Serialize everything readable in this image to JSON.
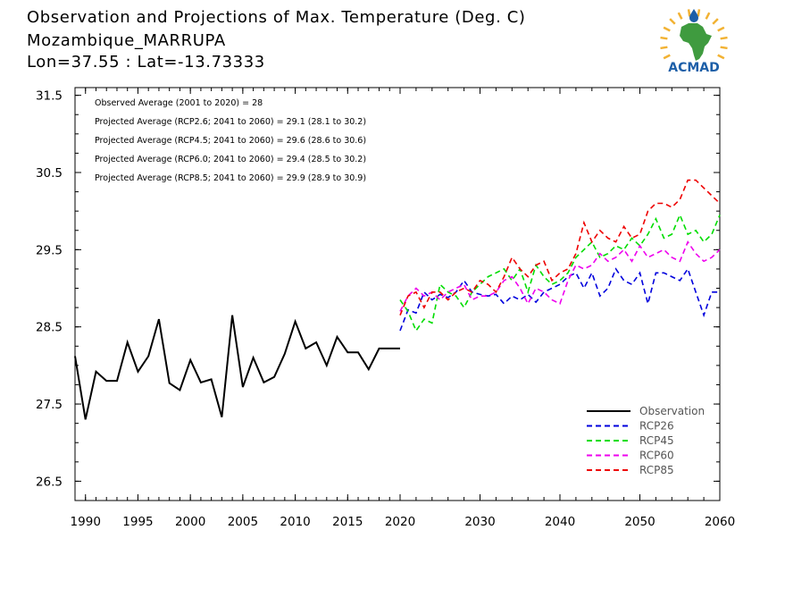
{
  "header": {
    "title": "Observation and Projections of Max. Temperature (Deg. C)",
    "location": "Mozambique_MARRUPA",
    "coords": "Lon=37.55 : Lat=-13.73333"
  },
  "logo": {
    "text": "ACMAD",
    "icon": "africa-sun-drop-logo",
    "brand_color": "#1d5fa8",
    "sun_color": "#f2b233",
    "africa_color": "#3f9b3f"
  },
  "annotations": [
    "Observed Average (2001 to 2020) = 28",
    "Projected Average (RCP2.6; 2041 to 2060) = 29.1 (28.1 to 30.2)",
    "Projected Average (RCP4.5; 2041 to 2060) = 29.6 (28.6 to 30.6)",
    "Projected Average (RCP6.0; 2041 to 2060) = 29.4 (28.5 to 30.2)",
    "Projected Average (RCP8.5; 2041 to 2060) = 29.9 (28.9 to 30.9)"
  ],
  "chart_data": {
    "type": "line",
    "xlim": [
      1989,
      2060
    ],
    "ylim": [
      26.25,
      31.6
    ],
    "y_ticks": [
      26.5,
      27.5,
      28.5,
      29.5,
      30.5,
      31.5
    ],
    "y_tick_labels": [
      "26.5",
      "27.5",
      "28.5",
      "29.5",
      "30.5",
      "31.5"
    ],
    "x_ticks": [
      1990,
      1995,
      2000,
      2005,
      2010,
      2015,
      2020,
      2030,
      2040,
      2050,
      2060
    ],
    "x_tick_labels": [
      "1990",
      "1995",
      "2000",
      "2005",
      "2010",
      "2015",
      "2020",
      "2030",
      "2040",
      "2050",
      "2060"
    ],
    "x_axis_break": {
      "years": [
        1989,
        2020,
        2060
      ]
    },
    "grid": false,
    "legend_position": "bottom-right",
    "series": [
      {
        "name": "Observation",
        "color": "#000000",
        "dash": "solid",
        "x": [
          1989,
          1990,
          1991,
          1992,
          1993,
          1994,
          1995,
          1996,
          1997,
          1998,
          1999,
          2000,
          2001,
          2002,
          2003,
          2004,
          2005,
          2006,
          2007,
          2008,
          2009,
          2010,
          2011,
          2012,
          2013,
          2014,
          2015,
          2016,
          2017,
          2018,
          2019,
          2020
        ],
        "y": [
          28.12,
          27.3,
          27.92,
          27.8,
          27.8,
          28.3,
          27.92,
          28.12,
          28.6,
          27.77,
          27.68,
          28.07,
          27.78,
          27.82,
          27.33,
          28.65,
          27.72,
          28.1,
          27.78,
          27.85,
          28.15,
          28.57,
          28.22,
          28.3,
          28.0,
          28.37,
          28.17,
          28.17,
          27.95,
          28.22,
          28.22,
          28.22
        ]
      },
      {
        "name": "RCP26",
        "color": "#0000dd",
        "dash": "dashed",
        "x": [
          2020,
          2021,
          2022,
          2023,
          2024,
          2025,
          2026,
          2027,
          2028,
          2029,
          2030,
          2031,
          2032,
          2033,
          2034,
          2035,
          2036,
          2037,
          2038,
          2039,
          2040,
          2041,
          2042,
          2043,
          2044,
          2045,
          2046,
          2047,
          2048,
          2049,
          2050,
          2051,
          2052,
          2053,
          2054,
          2055,
          2056,
          2057,
          2058,
          2059,
          2060
        ],
        "y": [
          28.45,
          28.72,
          28.68,
          28.95,
          28.85,
          28.92,
          28.88,
          28.95,
          29.1,
          28.95,
          28.92,
          28.9,
          28.92,
          28.8,
          28.9,
          28.85,
          28.92,
          28.82,
          28.95,
          29.0,
          29.05,
          29.15,
          29.2,
          29.0,
          29.2,
          28.9,
          29.0,
          29.25,
          29.1,
          29.05,
          29.2,
          28.8,
          29.2,
          29.2,
          29.15,
          29.1,
          29.25,
          28.95,
          28.65,
          28.95,
          28.95
        ]
      },
      {
        "name": "RCP45",
        "color": "#00dd00",
        "dash": "dashed",
        "x": [
          2020,
          2021,
          2022,
          2023,
          2024,
          2025,
          2026,
          2027,
          2028,
          2029,
          2030,
          2031,
          2032,
          2033,
          2034,
          2035,
          2036,
          2037,
          2038,
          2039,
          2040,
          2041,
          2042,
          2043,
          2044,
          2045,
          2046,
          2047,
          2048,
          2049,
          2050,
          2051,
          2052,
          2053,
          2054,
          2055,
          2056,
          2057,
          2058,
          2059,
          2060
        ],
        "y": [
          28.85,
          28.7,
          28.45,
          28.6,
          28.55,
          29.05,
          28.95,
          28.9,
          28.75,
          28.95,
          29.05,
          29.15,
          29.2,
          29.25,
          29.1,
          29.25,
          28.95,
          29.3,
          29.15,
          29.05,
          29.1,
          29.2,
          29.4,
          29.5,
          29.6,
          29.4,
          29.45,
          29.55,
          29.5,
          29.65,
          29.55,
          29.7,
          29.9,
          29.65,
          29.7,
          29.95,
          29.7,
          29.75,
          29.6,
          29.7,
          29.95
        ]
      },
      {
        "name": "RCP60",
        "color": "#ee00ee",
        "dash": "dashed",
        "x": [
          2020,
          2021,
          2022,
          2023,
          2024,
          2025,
          2026,
          2027,
          2028,
          2029,
          2030,
          2031,
          2032,
          2033,
          2034,
          2035,
          2036,
          2037,
          2038,
          2039,
          2040,
          2041,
          2042,
          2043,
          2044,
          2045,
          2046,
          2047,
          2048,
          2049,
          2050,
          2051,
          2052,
          2053,
          2054,
          2055,
          2056,
          2057,
          2058,
          2059,
          2060
        ],
        "y": [
          28.7,
          28.9,
          29.0,
          28.9,
          28.95,
          28.85,
          28.95,
          29.0,
          29.05,
          28.85,
          28.9,
          28.9,
          28.95,
          29.1,
          29.15,
          29.0,
          28.8,
          29.0,
          28.95,
          28.85,
          28.8,
          29.1,
          29.3,
          29.25,
          29.3,
          29.45,
          29.35,
          29.4,
          29.5,
          29.35,
          29.55,
          29.4,
          29.45,
          29.5,
          29.4,
          29.35,
          29.6,
          29.45,
          29.35,
          29.4,
          29.5
        ]
      },
      {
        "name": "RCP85",
        "color": "#ee0000",
        "dash": "dashed",
        "x": [
          2020,
          2021,
          2022,
          2023,
          2024,
          2025,
          2026,
          2027,
          2028,
          2029,
          2030,
          2031,
          2032,
          2033,
          2034,
          2035,
          2036,
          2037,
          2038,
          2039,
          2040,
          2041,
          2042,
          2043,
          2044,
          2045,
          2046,
          2047,
          2048,
          2049,
          2050,
          2051,
          2052,
          2053,
          2054,
          2055,
          2056,
          2057,
          2058,
          2059,
          2060
        ],
        "y": [
          28.65,
          28.9,
          28.95,
          28.75,
          28.95,
          28.95,
          28.85,
          28.95,
          29.0,
          28.95,
          29.1,
          29.05,
          28.95,
          29.15,
          29.4,
          29.25,
          29.15,
          29.3,
          29.35,
          29.1,
          29.2,
          29.25,
          29.45,
          29.85,
          29.6,
          29.75,
          29.65,
          29.6,
          29.8,
          29.65,
          29.7,
          30.0,
          30.1,
          30.1,
          30.05,
          30.15,
          30.4,
          30.4,
          30.3,
          30.2,
          30.1
        ]
      }
    ]
  }
}
